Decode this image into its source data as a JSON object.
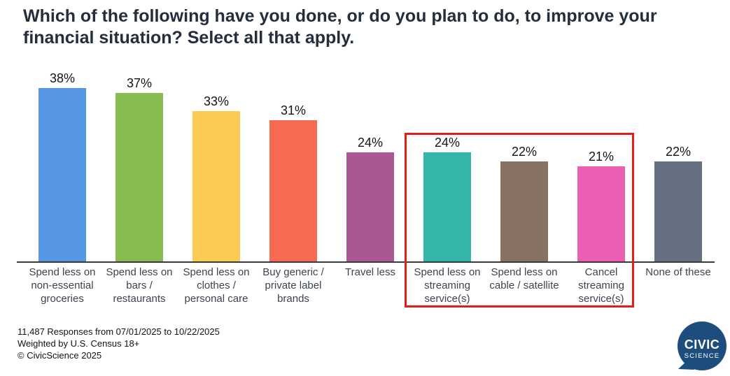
{
  "title": "Which of the following have you done, or do you plan to do, to improve your financial situation? Select all that apply.",
  "chart_data": {
    "type": "bar",
    "title": "Which of the following have you done, or do you plan to do, to improve your financial situation? Select all that apply.",
    "categories": [
      "Spend less on non-essential groceries",
      "Spend less on bars / restaurants",
      "Spend less on clothes / personal care",
      "Buy generic / private label brands",
      "Travel less",
      "Spend less on streaming service(s)",
      "Spend less on cable / satellite",
      "Cancel streaming service(s)",
      "None of these"
    ],
    "values": [
      38,
      37,
      33,
      31,
      24,
      24,
      22,
      21,
      22
    ],
    "value_labels": [
      "38%",
      "37%",
      "33%",
      "31%",
      "24%",
      "24%",
      "22%",
      "21%",
      "22%"
    ],
    "colors": [
      "#5697e3",
      "#87bd50",
      "#fbcb53",
      "#f76a52",
      "#ab5892",
      "#35b6a9",
      "#867163",
      "#ec5eb4",
      "#667081"
    ],
    "xlabel": "",
    "ylabel": "",
    "ylim": [
      0,
      40
    ],
    "grid": false,
    "legend": "none",
    "highlight": {
      "indices": [
        5,
        6,
        7
      ],
      "box_color": "#e01f1d",
      "note": "red box drawn around the three streaming/cable-related bars"
    }
  },
  "footer": {
    "line1": "11,487 Responses from 07/01/2025 to 10/22/2025",
    "line2": "Weighted by U.S. Census 18+",
    "line3": "© CivicScience 2025"
  },
  "logo": {
    "line1": "CIVIC",
    "line2": "SCIENCE",
    "bg_color": "#1d4d7d"
  }
}
